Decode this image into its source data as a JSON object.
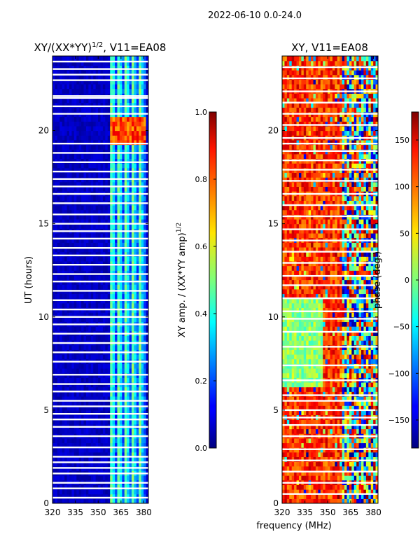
{
  "figure": {
    "suptitle": "2022-06-10 0.0-24.0",
    "xlabel_shared": "frequency (MHz)"
  },
  "chart_data": [
    {
      "type": "heatmap",
      "title": "XY/(XX*YY)",
      "title_sup": "1/2",
      "title_tail": ", V11=EA08",
      "ylabel": "UT (hours)",
      "xlim": [
        320,
        383
      ],
      "ylim": [
        0,
        24
      ],
      "xticks": [
        320,
        335,
        350,
        365,
        380
      ],
      "yticks": [
        0,
        5,
        10,
        15,
        20
      ],
      "grid": false,
      "colormap": "jet",
      "flagged_hours": [
        0.3,
        0.8,
        1.1,
        1.6,
        1.9,
        2.2,
        2.5,
        3.0,
        3.6,
        4.1,
        4.5,
        4.8,
        5.2,
        5.5,
        6.0,
        6.4,
        6.9,
        7.6,
        8.1,
        8.6,
        9.1,
        9.6,
        10.0,
        10.4,
        10.9,
        11.4,
        11.9,
        12.3,
        12.8,
        13.3,
        13.7,
        14.2,
        14.6,
        15.0,
        15.5,
        16.1,
        16.6,
        17.0,
        17.4,
        17.8,
        18.3,
        18.8,
        19.3,
        20.9,
        21.3,
        21.75,
        21.85,
        22.7,
        23.0,
        23.3,
        23.7
      ],
      "bright_band_mhz": [
        358,
        381
      ],
      "event": {
        "hours": [
          19.2,
          20.7
        ],
        "mhz": [
          358,
          381
        ],
        "amplitude": 0.9
      },
      "colorbar": {
        "label": "XY amp. / (XX*YY amp)",
        "label_sup": "1/2",
        "range": [
          0.0,
          1.0
        ],
        "ticks": [
          "0.0",
          "0.2",
          "0.4",
          "0.6",
          "0.8",
          "1.0"
        ],
        "tick_values": [
          0.0,
          0.2,
          0.4,
          0.6,
          0.8,
          1.0
        ]
      }
    },
    {
      "type": "heatmap",
      "title": "XY, V11=EA08",
      "ylabel": "",
      "xlim": [
        320,
        383
      ],
      "ylim": [
        0,
        24
      ],
      "xticks": [
        320,
        335,
        350,
        365,
        380
      ],
      "yticks": [
        0,
        5,
        10,
        15,
        20
      ],
      "grid": false,
      "colormap": "jet",
      "flagged_hours": [
        0.5,
        1.1,
        1.7,
        2.3,
        2.9,
        3.6,
        4.2,
        4.6,
        5.0,
        5.5,
        5.8,
        6.6,
        7.4,
        8.4,
        9.2,
        9.9,
        10.3,
        11.0,
        11.7,
        12.2,
        12.9,
        13.5,
        14.1,
        14.7,
        15.4,
        16.0,
        16.6,
        17.3,
        17.9,
        18.4,
        18.9,
        19.3,
        19.6,
        20.3,
        20.9,
        21.5,
        22.1,
        22.8,
        23.4
      ],
      "colorbar": {
        "label": "phase (deg.)",
        "range": [
          -180,
          180
        ],
        "ticks": [
          "−150",
          "−100",
          "−50",
          "0",
          "50",
          "100",
          "150"
        ],
        "tick_values": [
          -150,
          -100,
          -50,
          0,
          50,
          100,
          150
        ]
      }
    }
  ]
}
